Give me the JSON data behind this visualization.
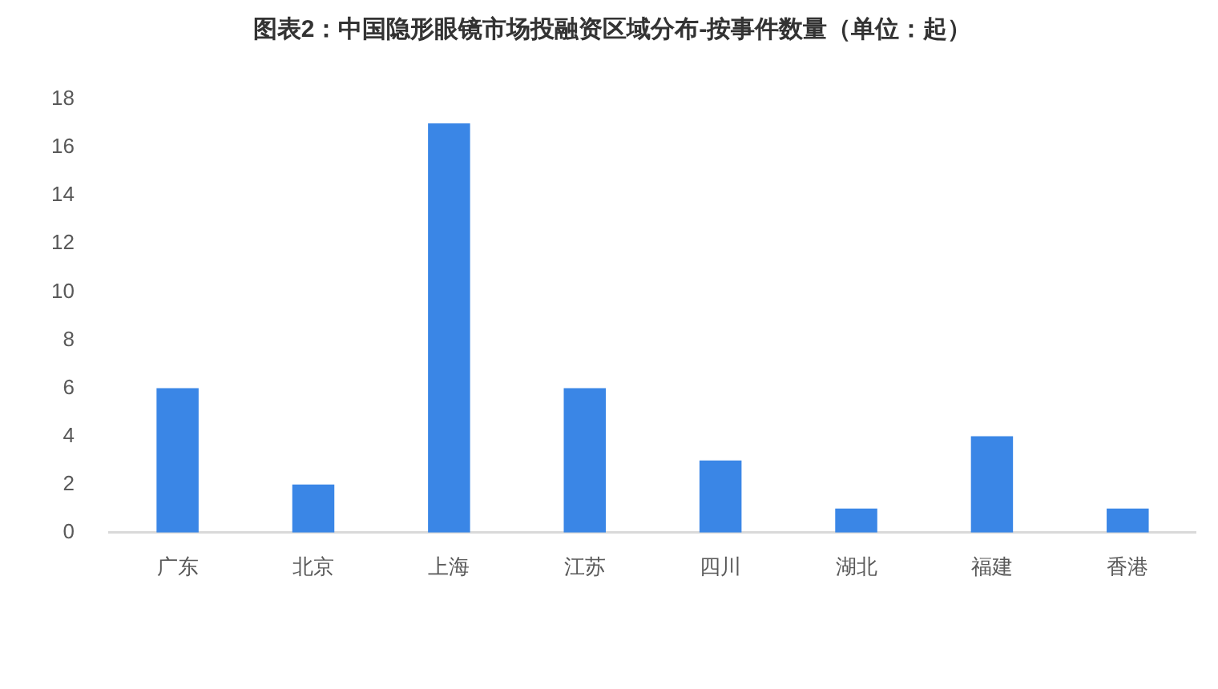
{
  "chart_data": {
    "type": "bar",
    "title": "图表2：中国隐形眼镜市场投融资区域分布-按事件数量（单位：起）",
    "categories": [
      "广东",
      "北京",
      "上海",
      "江苏",
      "四川",
      "湖北",
      "福建",
      "香港"
    ],
    "values": [
      6,
      2,
      17,
      6,
      3,
      1,
      4,
      1
    ],
    "color": "#3a86e6",
    "ylim": [
      0,
      18
    ],
    "yticks": [
      0,
      2,
      4,
      6,
      8,
      10,
      12,
      14,
      16,
      18
    ],
    "grid": false
  }
}
